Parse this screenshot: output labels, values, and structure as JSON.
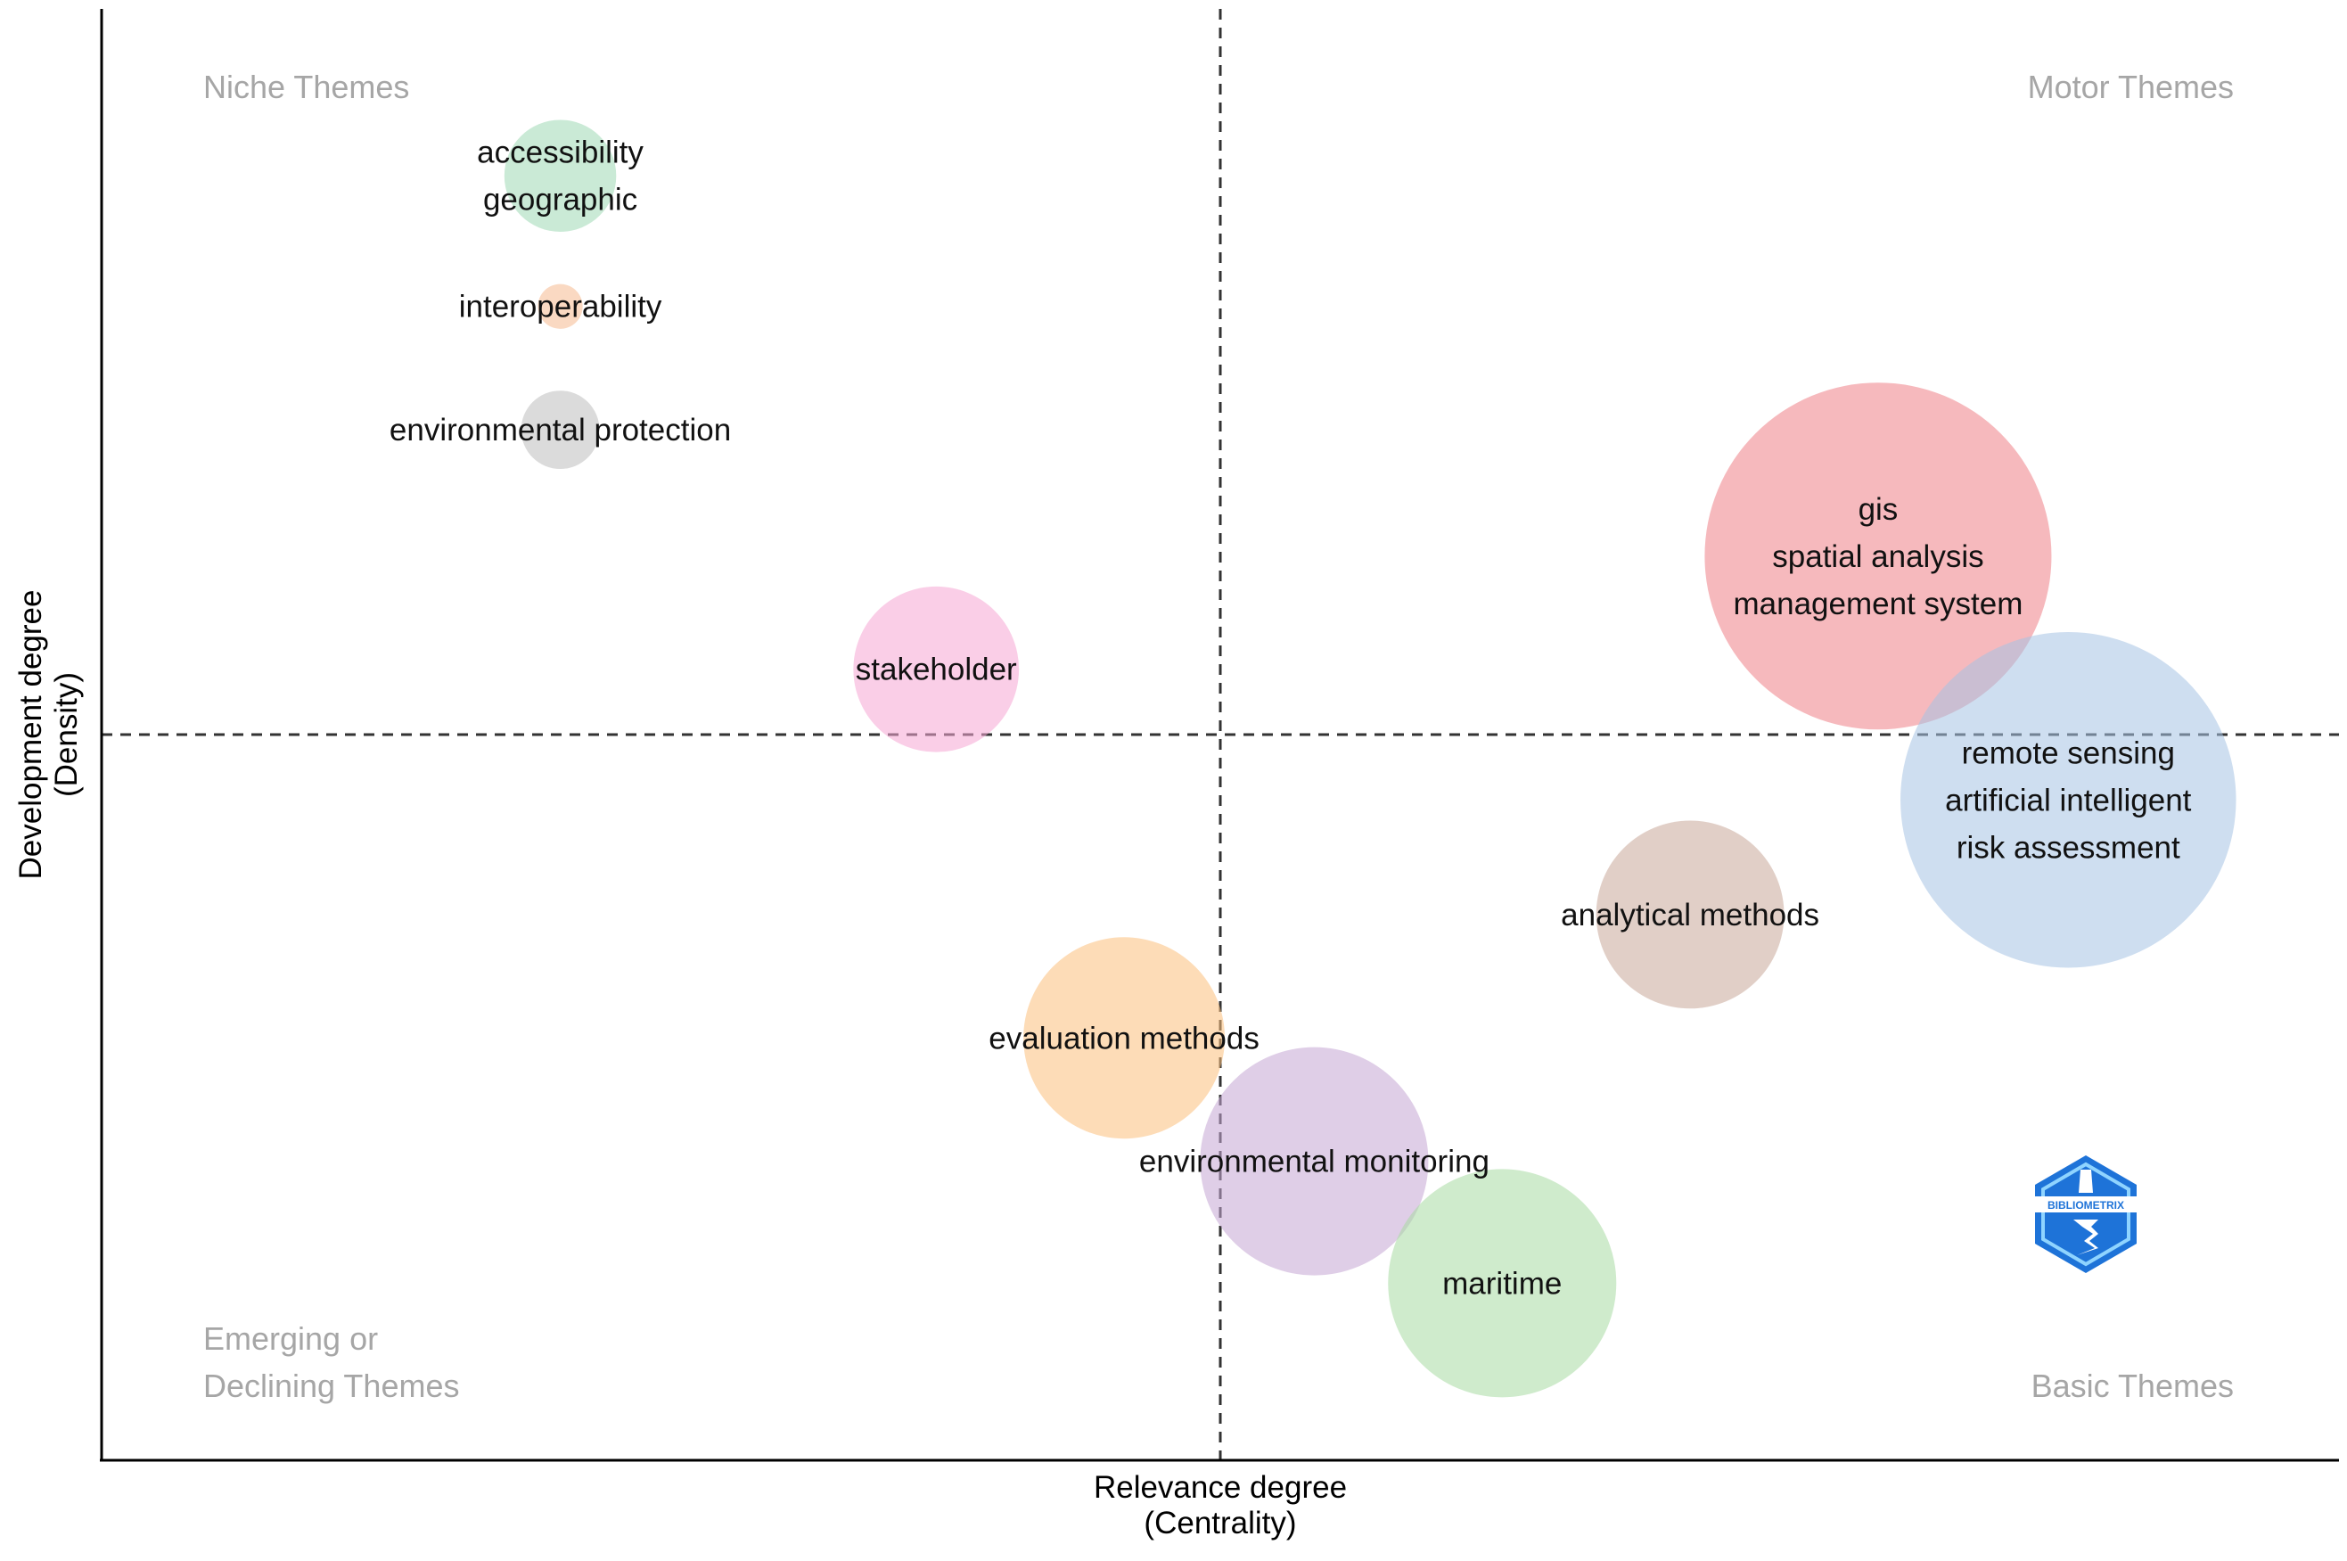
{
  "chart_data": {
    "type": "scatter",
    "title": "",
    "xlabel": [
      "Relevance degree",
      "(Centrality)"
    ],
    "ylabel": [
      "Development degree",
      "(Density)"
    ],
    "xlim": [
      0,
      100
    ],
    "ylim": [
      0,
      100
    ],
    "grid": false,
    "mean_lines": {
      "x": 50,
      "y": 50
    },
    "quadrant_labels": {
      "top_left": [
        "Niche Themes"
      ],
      "top_right": [
        "Motor Themes"
      ],
      "bottom_left": [
        "Emerging or",
        "Declining Themes"
      ],
      "bottom_right": [
        "Basic Themes"
      ]
    },
    "clusters": [
      {
        "labels": [
          "accessibility",
          "geographic"
        ],
        "x": 20.5,
        "y": 88.5,
        "size": 5,
        "color": "#9fd8b5"
      },
      {
        "labels": [
          "interoperability"
        ],
        "x": 20.5,
        "y": 79.5,
        "size": 2,
        "color": "#f6b98f"
      },
      {
        "labels": [
          "environmental protection"
        ],
        "x": 20.5,
        "y": 71.0,
        "size": 3.5,
        "color": "#bdbdbd"
      },
      {
        "labels": [
          "gis",
          "spatial analysis",
          "management system"
        ],
        "x": 79.4,
        "y": 62.3,
        "size": 15.5,
        "color": "#ee7f86"
      },
      {
        "labels": [
          "stakeholder"
        ],
        "x": 37.3,
        "y": 54.5,
        "size": 7.4,
        "color": "#f6a6d4"
      },
      {
        "labels": [
          "remote sensing",
          "artificial intelligent",
          "risk assessment"
        ],
        "x": 87.9,
        "y": 45.5,
        "size": 15,
        "color": "#a5c3e3"
      },
      {
        "labels": [
          "analytical methods"
        ],
        "x": 71.0,
        "y": 37.6,
        "size": 8.4,
        "color": "#c9a899"
      },
      {
        "labels": [
          "evaluation methods"
        ],
        "x": 45.7,
        "y": 29.1,
        "size": 9,
        "color": "#fbbf7c"
      },
      {
        "labels": [
          "environmental monitoring"
        ],
        "x": 54.2,
        "y": 20.6,
        "size": 10.2,
        "color": "#c4a6d4"
      },
      {
        "labels": [
          "maritime"
        ],
        "x": 62.6,
        "y": 12.2,
        "size": 10.2,
        "color": "#a8dba3"
      }
    ],
    "logo_text": "BIBLIOMETRIX"
  }
}
